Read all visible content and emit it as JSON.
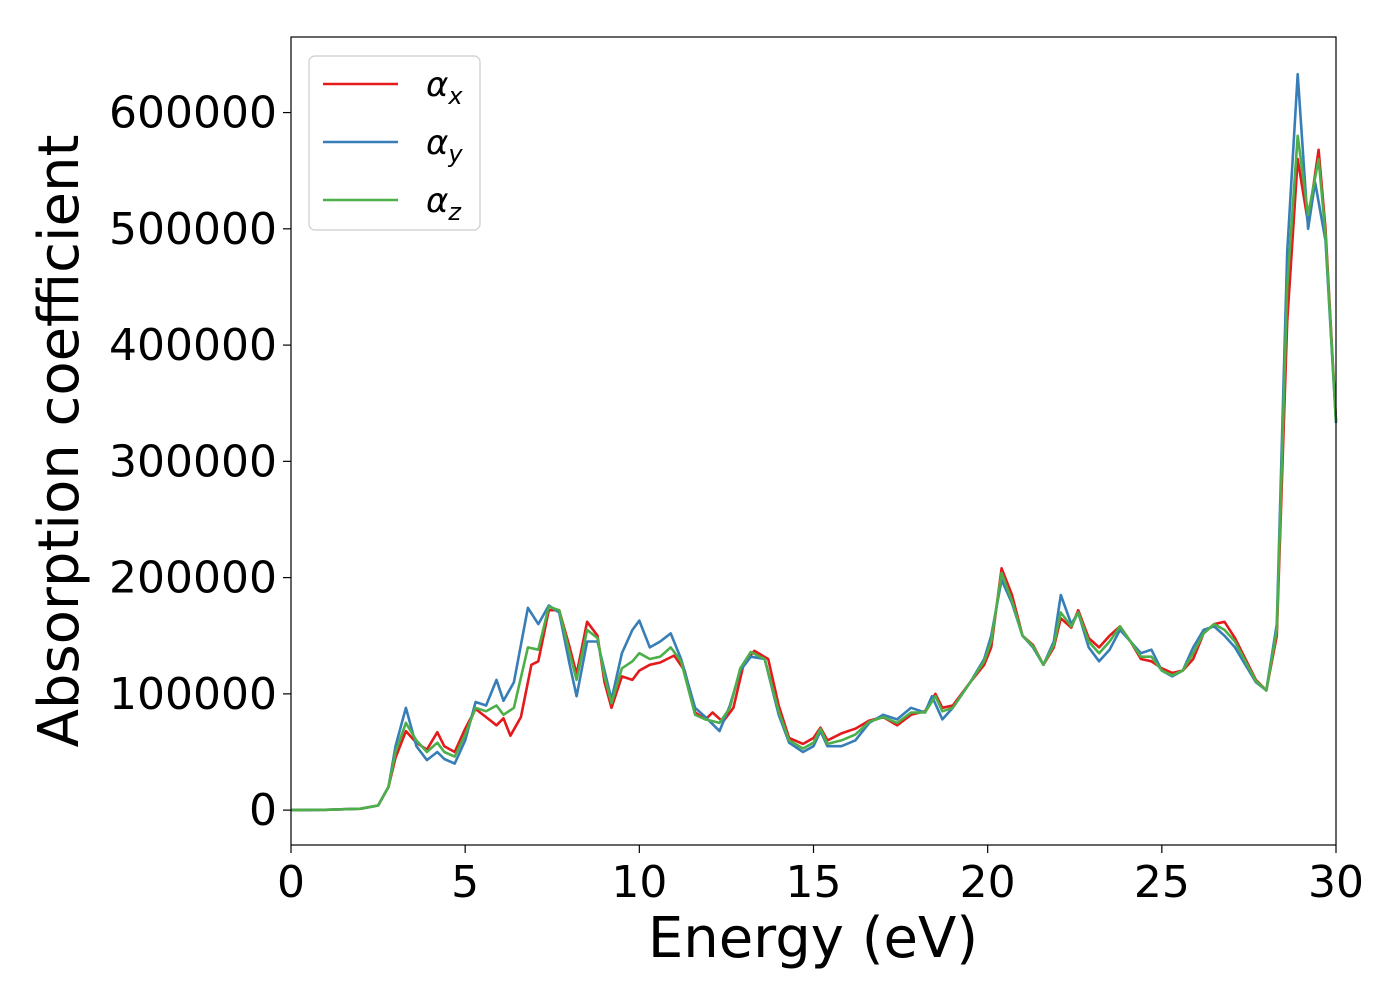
{
  "chart_data": {
    "type": "line",
    "title": "",
    "xlabel": "Energy (eV)",
    "ylabel": "Absorption coefficient",
    "xlim": [
      0,
      30
    ],
    "ylim": [
      -30000,
      665000
    ],
    "xticks": [
      0,
      5,
      10,
      15,
      20,
      25,
      30
    ],
    "yticks": [
      0,
      100000,
      200000,
      300000,
      400000,
      500000,
      600000
    ],
    "grid": false,
    "legend_position": "top-left",
    "series": [
      {
        "name": "α",
        "subscript": "x",
        "color": "#e41a1c",
        "points": [
          [
            0,
            0
          ],
          [
            1,
            300
          ],
          [
            2,
            1200
          ],
          [
            2.5,
            4000
          ],
          [
            2.8,
            20000
          ],
          [
            3.0,
            45000
          ],
          [
            3.3,
            68000
          ],
          [
            3.6,
            58000
          ],
          [
            3.9,
            52000
          ],
          [
            4.2,
            67000
          ],
          [
            4.4,
            55000
          ],
          [
            4.7,
            50000
          ],
          [
            5.0,
            70000
          ],
          [
            5.3,
            87000
          ],
          [
            5.6,
            80000
          ],
          [
            5.9,
            73000
          ],
          [
            6.1,
            79000
          ],
          [
            6.3,
            64000
          ],
          [
            6.6,
            80000
          ],
          [
            6.9,
            125000
          ],
          [
            7.1,
            128000
          ],
          [
            7.4,
            172000
          ],
          [
            7.7,
            172000
          ],
          [
            8.0,
            140000
          ],
          [
            8.2,
            117000
          ],
          [
            8.5,
            162000
          ],
          [
            8.8,
            150000
          ],
          [
            9.0,
            110000
          ],
          [
            9.2,
            88000
          ],
          [
            9.5,
            115000
          ],
          [
            9.8,
            112000
          ],
          [
            10.0,
            120000
          ],
          [
            10.3,
            125000
          ],
          [
            10.6,
            127000
          ],
          [
            11.0,
            133000
          ],
          [
            11.3,
            120000
          ],
          [
            11.6,
            84000
          ],
          [
            11.9,
            78000
          ],
          [
            12.1,
            84000
          ],
          [
            12.4,
            76000
          ],
          [
            12.7,
            88000
          ],
          [
            13.0,
            126000
          ],
          [
            13.3,
            137000
          ],
          [
            13.7,
            130000
          ],
          [
            14.0,
            90000
          ],
          [
            14.3,
            62000
          ],
          [
            14.7,
            57000
          ],
          [
            15.0,
            62000
          ],
          [
            15.2,
            71000
          ],
          [
            15.4,
            60000
          ],
          [
            15.8,
            66000
          ],
          [
            16.2,
            70000
          ],
          [
            16.6,
            77000
          ],
          [
            17.0,
            80000
          ],
          [
            17.4,
            73000
          ],
          [
            17.8,
            82000
          ],
          [
            18.2,
            85000
          ],
          [
            18.5,
            100000
          ],
          [
            18.7,
            88000
          ],
          [
            19.0,
            90000
          ],
          [
            19.5,
            110000
          ],
          [
            19.9,
            125000
          ],
          [
            20.1,
            140000
          ],
          [
            20.4,
            208000
          ],
          [
            20.7,
            185000
          ],
          [
            21.0,
            150000
          ],
          [
            21.3,
            142000
          ],
          [
            21.6,
            125000
          ],
          [
            21.9,
            140000
          ],
          [
            22.1,
            165000
          ],
          [
            22.4,
            157000
          ],
          [
            22.6,
            172000
          ],
          [
            22.9,
            148000
          ],
          [
            23.2,
            140000
          ],
          [
            23.5,
            150000
          ],
          [
            23.8,
            158000
          ],
          [
            24.1,
            145000
          ],
          [
            24.4,
            130000
          ],
          [
            24.7,
            128000
          ],
          [
            25.0,
            122000
          ],
          [
            25.3,
            118000
          ],
          [
            25.6,
            120000
          ],
          [
            25.9,
            130000
          ],
          [
            26.2,
            152000
          ],
          [
            26.5,
            160000
          ],
          [
            26.8,
            162000
          ],
          [
            27.1,
            148000
          ],
          [
            27.4,
            130000
          ],
          [
            27.7,
            112000
          ],
          [
            28.0,
            103000
          ],
          [
            28.3,
            150000
          ],
          [
            28.6,
            420000
          ],
          [
            28.9,
            560000
          ],
          [
            29.2,
            505000
          ],
          [
            29.5,
            568000
          ],
          [
            29.7,
            500000
          ],
          [
            30.0,
            335000
          ]
        ]
      },
      {
        "name": "α",
        "subscript": "y",
        "color": "#377eb8",
        "points": [
          [
            0,
            0
          ],
          [
            1,
            300
          ],
          [
            2,
            1200
          ],
          [
            2.5,
            4000
          ],
          [
            2.8,
            20000
          ],
          [
            3.0,
            55000
          ],
          [
            3.3,
            88000
          ],
          [
            3.6,
            55000
          ],
          [
            3.9,
            43000
          ],
          [
            4.2,
            50000
          ],
          [
            4.4,
            44000
          ],
          [
            4.7,
            40000
          ],
          [
            5.0,
            60000
          ],
          [
            5.3,
            93000
          ],
          [
            5.6,
            90000
          ],
          [
            5.9,
            112000
          ],
          [
            6.1,
            94000
          ],
          [
            6.4,
            110000
          ],
          [
            6.8,
            174000
          ],
          [
            7.1,
            160000
          ],
          [
            7.4,
            176000
          ],
          [
            7.7,
            170000
          ],
          [
            8.0,
            125000
          ],
          [
            8.2,
            98000
          ],
          [
            8.5,
            145000
          ],
          [
            8.8,
            145000
          ],
          [
            9.0,
            120000
          ],
          [
            9.2,
            95000
          ],
          [
            9.5,
            135000
          ],
          [
            9.8,
            155000
          ],
          [
            10.0,
            163000
          ],
          [
            10.3,
            140000
          ],
          [
            10.6,
            145000
          ],
          [
            10.9,
            152000
          ],
          [
            11.2,
            130000
          ],
          [
            11.6,
            88000
          ],
          [
            11.9,
            80000
          ],
          [
            12.3,
            68000
          ],
          [
            12.6,
            90000
          ],
          [
            12.9,
            120000
          ],
          [
            13.2,
            132000
          ],
          [
            13.6,
            130000
          ],
          [
            14.0,
            82000
          ],
          [
            14.3,
            58000
          ],
          [
            14.7,
            50000
          ],
          [
            15.0,
            55000
          ],
          [
            15.2,
            68000
          ],
          [
            15.4,
            55000
          ],
          [
            15.8,
            55000
          ],
          [
            16.2,
            60000
          ],
          [
            16.6,
            75000
          ],
          [
            17.0,
            82000
          ],
          [
            17.4,
            78000
          ],
          [
            17.8,
            88000
          ],
          [
            18.2,
            84000
          ],
          [
            18.4,
            98000
          ],
          [
            18.7,
            78000
          ],
          [
            19.0,
            88000
          ],
          [
            19.5,
            110000
          ],
          [
            19.9,
            130000
          ],
          [
            20.1,
            150000
          ],
          [
            20.4,
            198000
          ],
          [
            20.7,
            178000
          ],
          [
            21.0,
            150000
          ],
          [
            21.3,
            140000
          ],
          [
            21.6,
            125000
          ],
          [
            21.9,
            145000
          ],
          [
            22.1,
            185000
          ],
          [
            22.4,
            160000
          ],
          [
            22.6,
            170000
          ],
          [
            22.9,
            140000
          ],
          [
            23.2,
            128000
          ],
          [
            23.5,
            138000
          ],
          [
            23.8,
            155000
          ],
          [
            24.1,
            145000
          ],
          [
            24.4,
            135000
          ],
          [
            24.7,
            138000
          ],
          [
            25.0,
            120000
          ],
          [
            25.3,
            115000
          ],
          [
            25.6,
            120000
          ],
          [
            25.9,
            140000
          ],
          [
            26.2,
            155000
          ],
          [
            26.5,
            158000
          ],
          [
            26.8,
            150000
          ],
          [
            27.1,
            140000
          ],
          [
            27.4,
            125000
          ],
          [
            27.7,
            110000
          ],
          [
            28.0,
            103000
          ],
          [
            28.3,
            160000
          ],
          [
            28.6,
            480000
          ],
          [
            28.9,
            633000
          ],
          [
            29.2,
            500000
          ],
          [
            29.4,
            540000
          ],
          [
            29.7,
            490000
          ],
          [
            30.0,
            333000
          ]
        ]
      },
      {
        "name": "α",
        "subscript": "z",
        "color": "#4daf4a",
        "points": [
          [
            0,
            0
          ],
          [
            1,
            300
          ],
          [
            2,
            1200
          ],
          [
            2.5,
            4000
          ],
          [
            2.8,
            20000
          ],
          [
            3.0,
            50000
          ],
          [
            3.3,
            75000
          ],
          [
            3.6,
            60000
          ],
          [
            3.9,
            50000
          ],
          [
            4.2,
            58000
          ],
          [
            4.4,
            50000
          ],
          [
            4.7,
            46000
          ],
          [
            5.0,
            65000
          ],
          [
            5.3,
            88000
          ],
          [
            5.6,
            85000
          ],
          [
            5.9,
            90000
          ],
          [
            6.1,
            82000
          ],
          [
            6.4,
            88000
          ],
          [
            6.8,
            140000
          ],
          [
            7.1,
            138000
          ],
          [
            7.4,
            175000
          ],
          [
            7.7,
            172000
          ],
          [
            8.0,
            135000
          ],
          [
            8.2,
            112000
          ],
          [
            8.5,
            155000
          ],
          [
            8.8,
            148000
          ],
          [
            9.0,
            115000
          ],
          [
            9.2,
            92000
          ],
          [
            9.5,
            122000
          ],
          [
            9.8,
            128000
          ],
          [
            10.0,
            135000
          ],
          [
            10.3,
            130000
          ],
          [
            10.6,
            132000
          ],
          [
            10.9,
            140000
          ],
          [
            11.2,
            128000
          ],
          [
            11.6,
            82000
          ],
          [
            11.9,
            78000
          ],
          [
            12.3,
            75000
          ],
          [
            12.6,
            88000
          ],
          [
            12.9,
            122000
          ],
          [
            13.2,
            136000
          ],
          [
            13.6,
            130000
          ],
          [
            14.0,
            85000
          ],
          [
            14.3,
            60000
          ],
          [
            14.7,
            53000
          ],
          [
            15.0,
            58000
          ],
          [
            15.2,
            70000
          ],
          [
            15.4,
            57000
          ],
          [
            15.8,
            60000
          ],
          [
            16.2,
            65000
          ],
          [
            16.6,
            76000
          ],
          [
            17.0,
            80000
          ],
          [
            17.4,
            75000
          ],
          [
            17.8,
            84000
          ],
          [
            18.2,
            84000
          ],
          [
            18.5,
            98000
          ],
          [
            18.7,
            85000
          ],
          [
            19.0,
            88000
          ],
          [
            19.5,
            110000
          ],
          [
            19.9,
            128000
          ],
          [
            20.1,
            145000
          ],
          [
            20.4,
            204000
          ],
          [
            20.7,
            180000
          ],
          [
            21.0,
            150000
          ],
          [
            21.3,
            141000
          ],
          [
            21.6,
            125000
          ],
          [
            21.9,
            142000
          ],
          [
            22.1,
            170000
          ],
          [
            22.4,
            158000
          ],
          [
            22.6,
            170000
          ],
          [
            22.9,
            145000
          ],
          [
            23.2,
            135000
          ],
          [
            23.5,
            145000
          ],
          [
            23.8,
            158000
          ],
          [
            24.1,
            145000
          ],
          [
            24.4,
            132000
          ],
          [
            24.7,
            132000
          ],
          [
            25.0,
            120000
          ],
          [
            25.3,
            116000
          ],
          [
            25.6,
            120000
          ],
          [
            25.9,
            135000
          ],
          [
            26.2,
            152000
          ],
          [
            26.5,
            160000
          ],
          [
            26.8,
            155000
          ],
          [
            27.1,
            145000
          ],
          [
            27.4,
            128000
          ],
          [
            27.7,
            111000
          ],
          [
            28.0,
            103000
          ],
          [
            28.3,
            155000
          ],
          [
            28.6,
            450000
          ],
          [
            28.9,
            580000
          ],
          [
            29.2,
            512000
          ],
          [
            29.5,
            560000
          ],
          [
            29.7,
            495000
          ],
          [
            30.0,
            334000
          ]
        ]
      }
    ]
  }
}
